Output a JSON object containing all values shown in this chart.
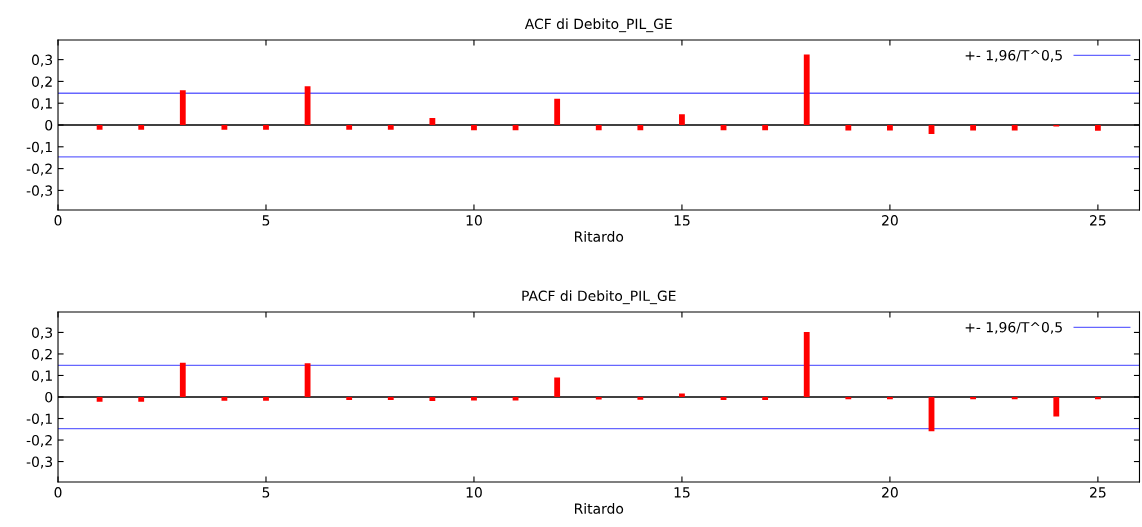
{
  "chart_data": [
    {
      "type": "bar",
      "title": "ACF di Debito_PIL_GE",
      "xlabel": "Ritardo",
      "x": [
        1,
        2,
        3,
        4,
        5,
        6,
        7,
        8,
        9,
        10,
        11,
        12,
        13,
        14,
        15,
        16,
        17,
        18,
        19,
        20,
        21,
        22,
        23,
        24,
        25
      ],
      "series": [
        {
          "color": "#ff0000",
          "values": [
            -0.022,
            -0.022,
            0.16,
            -0.022,
            -0.022,
            0.178,
            -0.022,
            -0.022,
            0.032,
            -0.024,
            -0.024,
            0.12,
            -0.024,
            -0.024,
            0.049,
            -0.024,
            -0.024,
            0.324,
            -0.025,
            -0.025,
            -0.041,
            -0.025,
            -0.025,
            -0.007,
            -0.026
          ]
        }
      ],
      "xlim": [
        0,
        26
      ],
      "xticks": [
        0,
        5,
        10,
        15,
        20,
        25
      ],
      "ylim": [
        -0.39,
        0.39
      ],
      "yticks": [
        {
          "value": -0.3,
          "label": "-0,3"
        },
        {
          "value": -0.2,
          "label": "-0,2"
        },
        {
          "value": -0.1,
          "label": "-0,1"
        },
        {
          "value": 0,
          "label": "0"
        },
        {
          "value": 0.1,
          "label": "0,1"
        },
        {
          "value": 0.2,
          "label": "0,2"
        },
        {
          "value": 0.3,
          "label": "0,3"
        }
      ],
      "ref_lines": [
        {
          "axis": "y",
          "value": 0.146,
          "label": "+- 1,96/T^0,5",
          "color": "#6666ff"
        },
        {
          "axis": "y",
          "value": -0.146,
          "color": "#6666ff"
        },
        {
          "axis": "y",
          "value": 0,
          "color": "#000000"
        }
      ],
      "legend": "top right",
      "grid": false
    },
    {
      "type": "bar",
      "title": "PACF di Debito_PIL_GE",
      "xlabel": "Ritardo",
      "x": [
        1,
        2,
        3,
        4,
        5,
        6,
        7,
        8,
        9,
        10,
        11,
        12,
        13,
        14,
        15,
        16,
        17,
        18,
        19,
        20,
        21,
        22,
        23,
        24,
        25
      ],
      "series": [
        {
          "color": "#ff0000",
          "values": [
            -0.022,
            -0.022,
            0.159,
            -0.017,
            -0.017,
            0.157,
            -0.014,
            -0.014,
            -0.019,
            -0.016,
            -0.016,
            0.091,
            -0.012,
            -0.013,
            0.016,
            -0.014,
            -0.014,
            0.302,
            -0.01,
            -0.01,
            -0.159,
            -0.01,
            -0.01,
            -0.091,
            -0.011
          ]
        }
      ],
      "xlim": [
        0,
        26
      ],
      "xticks": [
        0,
        5,
        10,
        15,
        20,
        25
      ],
      "ylim": [
        -0.395,
        0.395
      ],
      "yticks": [
        {
          "value": -0.3,
          "label": "-0,3"
        },
        {
          "value": -0.2,
          "label": "-0,2"
        },
        {
          "value": -0.1,
          "label": "-0,1"
        },
        {
          "value": 0,
          "label": "0"
        },
        {
          "value": 0.1,
          "label": "0,1"
        },
        {
          "value": 0.2,
          "label": "0,2"
        },
        {
          "value": 0.3,
          "label": "0,3"
        }
      ],
      "ref_lines": [
        {
          "axis": "y",
          "value": 0.147,
          "label": "+- 1,96/T^0,5",
          "color": "#6666ff"
        },
        {
          "axis": "y",
          "value": -0.147,
          "color": "#6666ff"
        },
        {
          "axis": "y",
          "value": 0,
          "color": "#000000"
        }
      ],
      "legend": "top right",
      "grid": false
    }
  ]
}
